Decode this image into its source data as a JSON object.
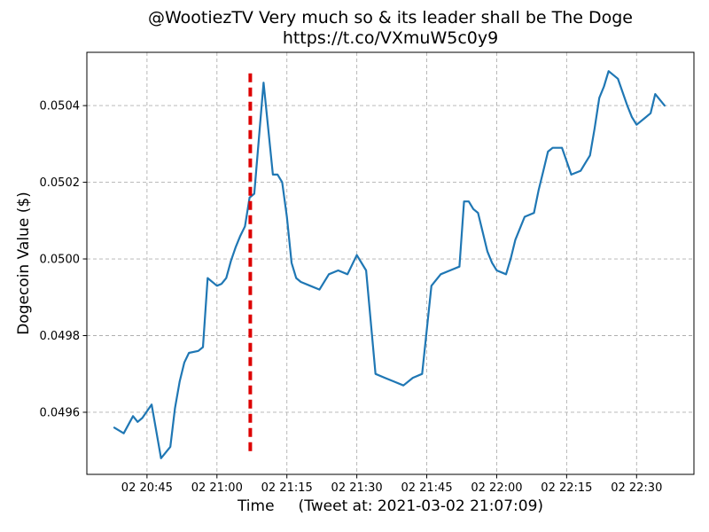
{
  "chart_data": {
    "type": "line",
    "title_line1": "@WootiezTV Very much so & its leader shall be The Doge",
    "title_line2": "https://t.co/VXmuW5c0y9",
    "xlabel": "Time     (Tweet at: 2021-03-02 21:07:09)",
    "ylabel": "Dogecoin Value ($)",
    "x_tick_labels": [
      "02 20:45",
      "02 21:00",
      "02 21:15",
      "02 21:30",
      "02 21:45",
      "02 22:00",
      "02 22:15",
      "02 22:30"
    ],
    "x_tick_times": [
      "20:45",
      "21:00",
      "21:15",
      "21:30",
      "21:45",
      "22:00",
      "22:15",
      "22:30"
    ],
    "y_tick_labels": [
      "0.0496",
      "0.0498",
      "0.0500",
      "0.0502",
      "0.0504"
    ],
    "grid": true,
    "legend_position": "none",
    "xlim_minutes_after_20h": [
      32.1,
      162.3
    ],
    "ylim": [
      0.049438,
      0.050539
    ],
    "colors": {
      "line": "#1f77b4",
      "tweet_marker": "#dd0000",
      "grid": "#b0b0b0",
      "spine": "#000000",
      "background": "#ffffff"
    },
    "tweet_marker": {
      "time": "21:07:09",
      "style": "dashed",
      "label": "Tweet at: 2021-03-02 21:07:09"
    },
    "series": [
      {
        "name": "Dogecoin value",
        "points": [
          [
            "20:38",
            0.04956
          ],
          [
            "20:40",
            0.049545
          ],
          [
            "20:42",
            0.04959
          ],
          [
            "20:43",
            0.049575
          ],
          [
            "20:44",
            0.049585
          ],
          [
            "20:46",
            0.04962
          ],
          [
            "20:48",
            0.04948
          ],
          [
            "20:49",
            0.049495
          ],
          [
            "20:50",
            0.04951
          ],
          [
            "20:51",
            0.04961
          ],
          [
            "20:52",
            0.04968
          ],
          [
            "20:53",
            0.04973
          ],
          [
            "20:54",
            0.049755
          ],
          [
            "20:56",
            0.04976
          ],
          [
            "20:57",
            0.04977
          ],
          [
            "20:58",
            0.04995
          ],
          [
            "21:00",
            0.04993
          ],
          [
            "21:01",
            0.049935
          ],
          [
            "21:02",
            0.04995
          ],
          [
            "21:03",
            0.049995
          ],
          [
            "21:04",
            0.05003
          ],
          [
            "21:05",
            0.05006
          ],
          [
            "21:06",
            0.050085
          ],
          [
            "21:07",
            0.05016
          ],
          [
            "21:08",
            0.05017
          ],
          [
            "21:10",
            0.05046
          ],
          [
            "21:12",
            0.05022
          ],
          [
            "21:13",
            0.05022
          ],
          [
            "21:14",
            0.0502
          ],
          [
            "21:15",
            0.05011
          ],
          [
            "21:16",
            0.04999
          ],
          [
            "21:17",
            0.04995
          ],
          [
            "21:18",
            0.04994
          ],
          [
            "21:20",
            0.04993
          ],
          [
            "21:22",
            0.04992
          ],
          [
            "21:24",
            0.04996
          ],
          [
            "21:26",
            0.04997
          ],
          [
            "21:28",
            0.04996
          ],
          [
            "21:30",
            0.05001
          ],
          [
            "21:32",
            0.04997
          ],
          [
            "21:34",
            0.0497
          ],
          [
            "21:36",
            0.04969
          ],
          [
            "21:38",
            0.04968
          ],
          [
            "21:40",
            0.04967
          ],
          [
            "21:42",
            0.04969
          ],
          [
            "21:44",
            0.0497
          ],
          [
            "21:46",
            0.04993
          ],
          [
            "21:48",
            0.04996
          ],
          [
            "21:50",
            0.04997
          ],
          [
            "21:52",
            0.04998
          ],
          [
            "21:53",
            0.05015
          ],
          [
            "21:54",
            0.05015
          ],
          [
            "21:55",
            0.05013
          ],
          [
            "21:56",
            0.05012
          ],
          [
            "21:58",
            0.05002
          ],
          [
            "21:59",
            0.04999
          ],
          [
            "22:00",
            0.04997
          ],
          [
            "22:02",
            0.04996
          ],
          [
            "22:03",
            0.05
          ],
          [
            "22:04",
            0.05005
          ],
          [
            "22:06",
            0.05011
          ],
          [
            "22:08",
            0.05012
          ],
          [
            "22:09",
            0.05018
          ],
          [
            "22:10",
            0.05023
          ],
          [
            "22:11",
            0.05028
          ],
          [
            "22:12",
            0.05029
          ],
          [
            "22:14",
            0.05029
          ],
          [
            "22:16",
            0.05022
          ],
          [
            "22:18",
            0.05023
          ],
          [
            "22:19",
            0.05025
          ],
          [
            "22:20",
            0.05027
          ],
          [
            "22:21",
            0.05034
          ],
          [
            "22:22",
            0.05042
          ],
          [
            "22:23",
            0.05045
          ],
          [
            "22:24",
            0.05049
          ],
          [
            "22:26",
            0.05047
          ],
          [
            "22:28",
            0.0504
          ],
          [
            "22:29",
            0.05037
          ],
          [
            "22:30",
            0.05035
          ],
          [
            "22:32",
            0.05037
          ],
          [
            "22:33",
            0.05038
          ],
          [
            "22:34",
            0.05043
          ],
          [
            "22:36",
            0.0504
          ]
        ]
      }
    ]
  }
}
